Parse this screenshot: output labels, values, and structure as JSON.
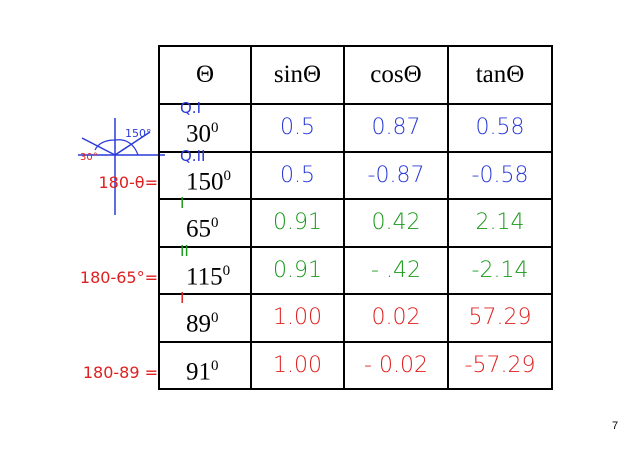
{
  "table": {
    "header": [
      "Θ",
      "sinΘ",
      "cosΘ",
      "tanΘ"
    ],
    "rows": [
      {
        "note": "Q.I",
        "angle": "30",
        "degree": "0",
        "sin": "0.5",
        "cos": "0.87",
        "tan": "0.58"
      },
      {
        "note": "Q.II",
        "left_note": "180-θ=",
        "angle": "150",
        "degree": "0",
        "sin": "0.5",
        "cos": "-0.87",
        "tan": "-0.58"
      },
      {
        "note": "I",
        "angle": "65",
        "degree": "0",
        "sin": "0.91",
        "cos": "0.42",
        "tan": "2.14"
      },
      {
        "note": "II",
        "left_note": "180-65°=",
        "angle": "115",
        "degree": "0",
        "sin": "0.91",
        "cos": "- .42",
        "tan": "-2.14"
      },
      {
        "note": "I",
        "angle": "89",
        "degree": "0",
        "sin": "1.00",
        "cos": "0.02",
        "tan": "57.29"
      },
      {
        "left_note": "180-89 =",
        "angle": "91",
        "degree": "0",
        "sin": "1.00",
        "cos": "- 0.02",
        "tan": "-57.29"
      }
    ]
  },
  "sketch": [
    "150°",
    "30°"
  ],
  "page_number": "7"
}
